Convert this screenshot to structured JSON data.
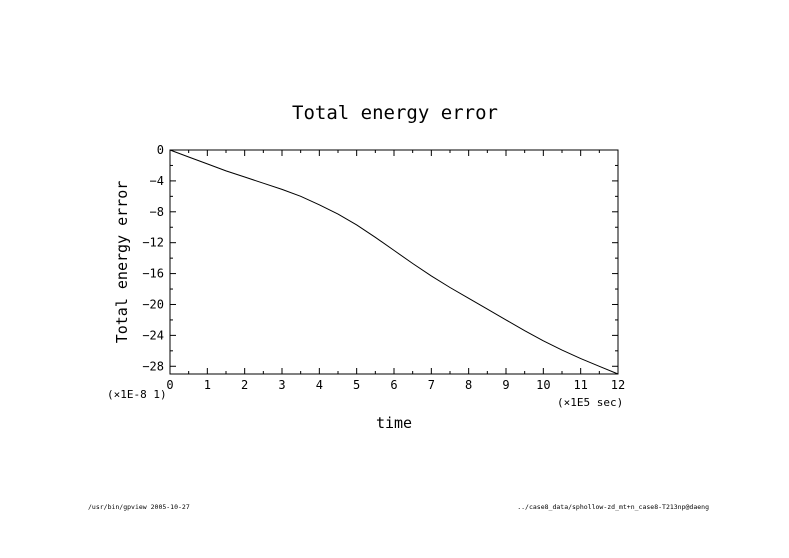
{
  "chart_data": {
    "type": "line",
    "title": "Total energy error",
    "xlabel": "time",
    "ylabel": "Total energy error",
    "x_scale_label": "(×1E5 sec)",
    "y_scale_label": "(×1E-8 1)",
    "xlim": [
      0,
      12
    ],
    "ylim": [
      -29,
      0
    ],
    "x_ticks": [
      "0",
      "1",
      "2",
      "3",
      "4",
      "5",
      "6",
      "7",
      "8",
      "9",
      "10",
      "11",
      "12"
    ],
    "y_ticks": [
      "0",
      "-4",
      "-8",
      "-12",
      "-16",
      "-20",
      "-24",
      "-28"
    ],
    "grid": false,
    "series": [
      {
        "x": [
          0,
          0.5,
          1,
          1.5,
          2,
          2.5,
          3,
          3.5,
          4,
          4.5,
          5,
          5.5,
          6,
          6.5,
          7,
          7.5,
          8,
          8.5,
          9,
          9.5,
          10,
          10.5,
          11,
          11.5,
          12
        ],
        "values": [
          0,
          -0.9,
          -1.8,
          -2.7,
          -3.5,
          -4.3,
          -5.1,
          -6.0,
          -7.1,
          -8.3,
          -9.7,
          -11.3,
          -13.0,
          -14.7,
          -16.3,
          -17.8,
          -19.2,
          -20.6,
          -22.0,
          -23.4,
          -24.7,
          -25.9,
          -27.0,
          -28.0,
          -29.0
        ]
      }
    ]
  },
  "footer": {
    "left": "/usr/bin/gpview  2005-10-27",
    "right": "../case8_data/sphollow-zd_mt+n_case8-T213np@daeng"
  }
}
